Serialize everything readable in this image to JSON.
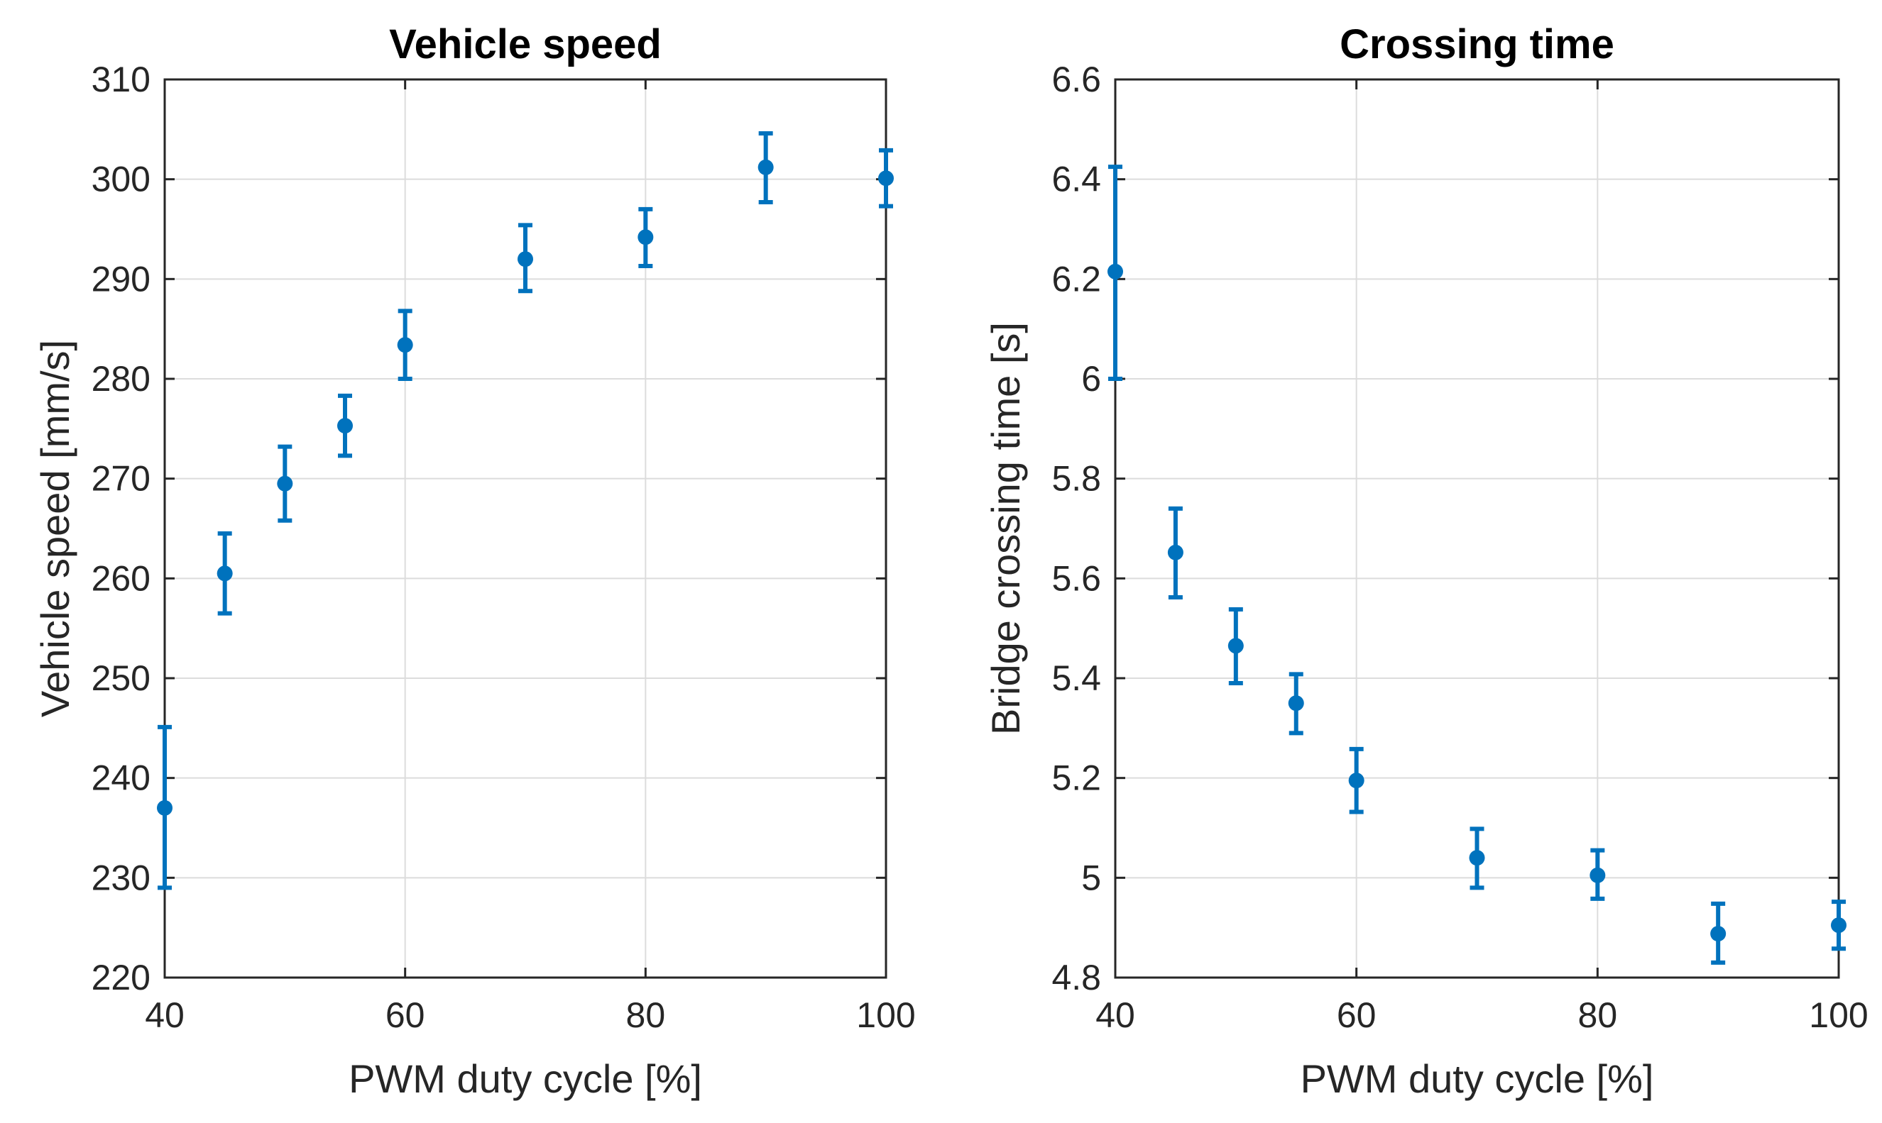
{
  "chart_data": [
    {
      "type": "scatter",
      "title": "Vehicle speed",
      "xlabel": "PWM duty cycle [%]",
      "ylabel": "Vehicle speed [mm/s]",
      "xlim": [
        40,
        100
      ],
      "ylim": [
        220,
        310
      ],
      "xticks": [
        40,
        60,
        80,
        100
      ],
      "yticks": [
        220,
        230,
        240,
        250,
        260,
        270,
        280,
        290,
        300,
        310
      ],
      "grid": true,
      "color": "#0072BD",
      "series": [
        {
          "name": "Vehicle speed",
          "x": [
            40,
            45,
            50,
            55,
            60,
            70,
            80,
            90,
            100
          ],
          "y": [
            237.0,
            260.5,
            269.5,
            275.3,
            283.4,
            292.0,
            294.2,
            301.2,
            300.1
          ],
          "err_low": [
            229.0,
            256.5,
            265.8,
            272.3,
            280.0,
            288.8,
            291.3,
            297.7,
            297.3
          ],
          "err_high": [
            245.1,
            264.5,
            273.2,
            278.3,
            286.8,
            295.4,
            297.0,
            304.6,
            302.9
          ]
        }
      ]
    },
    {
      "type": "scatter",
      "title": "Crossing time",
      "xlabel": "PWM duty cycle [%]",
      "ylabel": "Bridge crossing time [s]",
      "xlim": [
        40,
        100
      ],
      "ylim": [
        4.8,
        6.6
      ],
      "xticks": [
        40,
        60,
        80,
        100
      ],
      "yticks": [
        4.8,
        5.0,
        5.2,
        5.4,
        5.6,
        5.8,
        6.0,
        6.2,
        6.4,
        6.6
      ],
      "ytick_labels": [
        "4.8",
        "5",
        "5.2",
        "5.4",
        "5.6",
        "5.8",
        "6",
        "6.2",
        "6.4",
        "6.6"
      ],
      "grid": true,
      "color": "#0072BD",
      "series": [
        {
          "name": "Bridge crossing time",
          "x": [
            40,
            45,
            50,
            55,
            60,
            70,
            80,
            90,
            100
          ],
          "y": [
            6.215,
            5.652,
            5.465,
            5.35,
            5.195,
            5.04,
            5.005,
            4.888,
            4.905
          ],
          "err_low": [
            6.0,
            5.562,
            5.39,
            5.29,
            5.132,
            4.98,
            4.958,
            4.83,
            4.858
          ],
          "err_high": [
            6.425,
            5.74,
            5.538,
            5.408,
            5.258,
            5.098,
            5.055,
            4.948,
            4.952
          ]
        }
      ]
    }
  ]
}
